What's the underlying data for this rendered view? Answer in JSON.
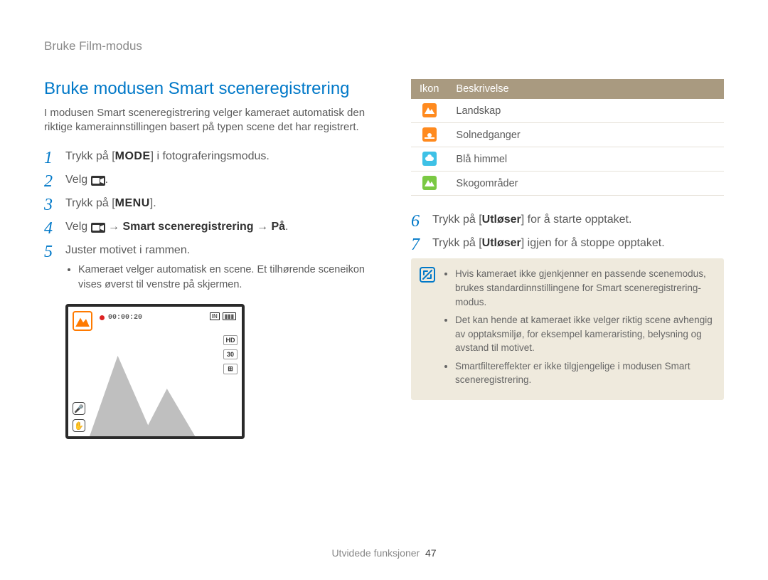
{
  "breadcrumb": "Bruke Film-modus",
  "title": "Bruke modusen Smart sceneregistrering",
  "intro": "I modusen Smart sceneregistrering velger kameraet automatisk den riktige kamerainnstillingen basert på typen scene det har registrert.",
  "steps_left": {
    "s1_pre": "Trykk på [",
    "s1_mode": "MODE",
    "s1_post": "] i fotograferingsmodus.",
    "s2": "Velg ",
    "s3_pre": "Trykk på [",
    "s3_menu": "MENU",
    "s3_post": "].",
    "s4_pre": "Velg ",
    "s4_arrow1": " → ",
    "s4_bold": "Smart sceneregistrering",
    "s4_arrow2": " → ",
    "s4_bold2": "På",
    "s4_post": ".",
    "s5": "Juster motivet i rammen.",
    "s5_sub": "Kameraet velger automatisk en scene. Et tilhørende sceneikon vises øverst til venstre på skjermen."
  },
  "camera": {
    "timecode": "00:00:20",
    "top_right_in": "IN",
    "side": [
      "HD",
      "30",
      "⊞"
    ],
    "left_mic": "🎤",
    "left_stab": "✋",
    "mountain_fill": "#bfbfbf"
  },
  "table": {
    "headers": [
      "Ikon",
      "Beskrivelse"
    ],
    "rows": [
      {
        "bg": "#ff8a1e",
        "svg": "mountain",
        "fg": "#ffffff",
        "label": "Landskap"
      },
      {
        "bg": "#ff8a1e",
        "svg": "sunset",
        "fg": "#ffffff",
        "label": "Solnedganger"
      },
      {
        "bg": "#3ec1e6",
        "svg": "cloud",
        "fg": "#ffffff",
        "label": "Blå himmel"
      },
      {
        "bg": "#7ac943",
        "svg": "mountain",
        "fg": "#ffffff",
        "label": "Skogområder"
      }
    ]
  },
  "steps_right": {
    "s6_pre": "Trykk på [",
    "s6_bold": "Utløser",
    "s6_post": "] for å starte opptaket.",
    "s7_pre": "Trykk på [",
    "s7_bold": "Utløser",
    "s7_post": "] igjen for å stoppe opptaket."
  },
  "note": [
    "Hvis kameraet ikke gjenkjenner en passende scenemodus, brukes standardinnstillingene for Smart sceneregistrering-modus.",
    "Det kan hende at kameraet ikke velger riktig scene avhengig av opptaksmiljø, for eksempel kameraristing, belysning og avstand til motivet.",
    "Smartfiltereffekter er ikke tilgjengelige i modusen Smart sceneregistrering."
  ],
  "footer": {
    "label": "Utvidede funksjoner",
    "page": "47"
  }
}
